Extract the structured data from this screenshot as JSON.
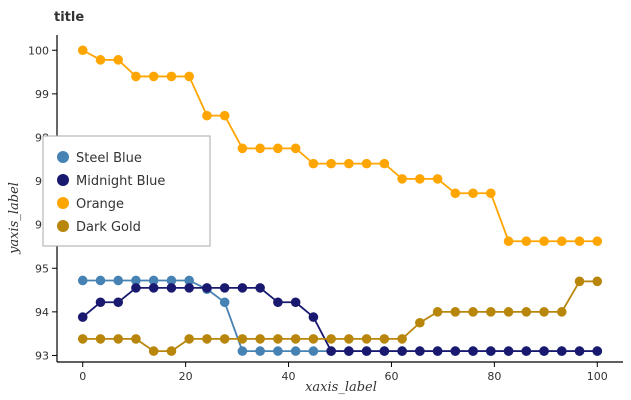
{
  "chart_data": {
    "type": "line",
    "title": "title",
    "xlabel": "xaxis_label",
    "ylabel": "yaxis_label",
    "xlim": [
      -5,
      105
    ],
    "ylim": [
      92.85,
      100.35
    ],
    "x_ticks": [
      0,
      20,
      40,
      60,
      80,
      100
    ],
    "y_ticks": [
      93,
      94,
      95,
      96,
      97,
      98,
      99,
      100
    ],
    "grid": false,
    "legend_position": "left",
    "series": [
      {
        "name": "Steel Blue",
        "color": "#4682b4",
        "x": [
          0,
          3.45,
          6.9,
          10.34,
          13.79,
          17.24,
          20.69,
          24.14,
          27.59,
          31.03,
          34.48,
          37.93,
          41.38,
          44.83,
          48.28,
          51.72,
          55.17,
          58.62,
          62.07,
          65.52,
          68.97,
          72.41,
          75.86,
          79.31,
          82.76,
          86.21,
          89.66,
          93.1,
          96.55,
          100
        ],
        "y": [
          94.72,
          94.72,
          94.72,
          94.72,
          94.72,
          94.72,
          94.72,
          94.52,
          94.22,
          93.1,
          93.1,
          93.1,
          93.1,
          93.1,
          93.1,
          93.1,
          93.1,
          93.1,
          93.1,
          93.1,
          93.1,
          93.1,
          93.1,
          93.1,
          93.1,
          93.1,
          93.1,
          93.1,
          93.1,
          93.1
        ]
      },
      {
        "name": "Midnight Blue",
        "color": "#191970",
        "x": [
          0,
          3.45,
          6.9,
          10.34,
          13.79,
          17.24,
          20.69,
          24.14,
          27.59,
          31.03,
          34.48,
          37.93,
          41.38,
          44.83,
          48.28,
          51.72,
          55.17,
          58.62,
          62.07,
          65.52,
          68.97,
          72.41,
          75.86,
          79.31,
          82.76,
          86.21,
          89.66,
          93.1,
          96.55,
          100
        ],
        "y": [
          93.88,
          94.22,
          94.22,
          94.55,
          94.55,
          94.55,
          94.55,
          94.55,
          94.55,
          94.55,
          94.55,
          94.22,
          94.22,
          93.88,
          93.1,
          93.1,
          93.1,
          93.1,
          93.1,
          93.1,
          93.1,
          93.1,
          93.1,
          93.1,
          93.1,
          93.1,
          93.1,
          93.1,
          93.1,
          93.1
        ]
      },
      {
        "name": "Orange",
        "color": "#ffa500",
        "x": [
          0,
          3.45,
          6.9,
          10.34,
          13.79,
          17.24,
          20.69,
          24.14,
          27.59,
          31.03,
          34.48,
          37.93,
          41.38,
          44.83,
          48.28,
          51.72,
          55.17,
          58.62,
          62.07,
          65.52,
          68.97,
          72.41,
          75.86,
          79.31,
          82.76,
          86.21,
          89.66,
          93.1,
          96.55,
          100
        ],
        "y": [
          100,
          99.78,
          99.78,
          99.4,
          99.4,
          99.4,
          99.4,
          98.5,
          98.5,
          97.75,
          97.75,
          97.75,
          97.75,
          97.4,
          97.4,
          97.4,
          97.4,
          97.4,
          97.05,
          97.05,
          97.05,
          96.72,
          96.72,
          96.72,
          95.62,
          95.62,
          95.62,
          95.62,
          95.62,
          95.62
        ]
      },
      {
        "name": "Dark Gold",
        "color": "#b8860b",
        "x": [
          0,
          3.45,
          6.9,
          10.34,
          13.79,
          17.24,
          20.69,
          24.14,
          27.59,
          31.03,
          34.48,
          37.93,
          41.38,
          44.83,
          48.28,
          51.72,
          55.17,
          58.62,
          62.07,
          65.52,
          68.97,
          72.41,
          75.86,
          79.31,
          82.76,
          86.21,
          89.66,
          93.1,
          96.55,
          100
        ],
        "y": [
          93.38,
          93.38,
          93.38,
          93.38,
          93.1,
          93.1,
          93.38,
          93.38,
          93.38,
          93.38,
          93.38,
          93.38,
          93.38,
          93.38,
          93.38,
          93.38,
          93.38,
          93.38,
          93.38,
          93.75,
          94.0,
          94.0,
          94.0,
          94.0,
          94.0,
          94.0,
          94.0,
          94.0,
          94.7,
          94.7
        ]
      }
    ]
  }
}
